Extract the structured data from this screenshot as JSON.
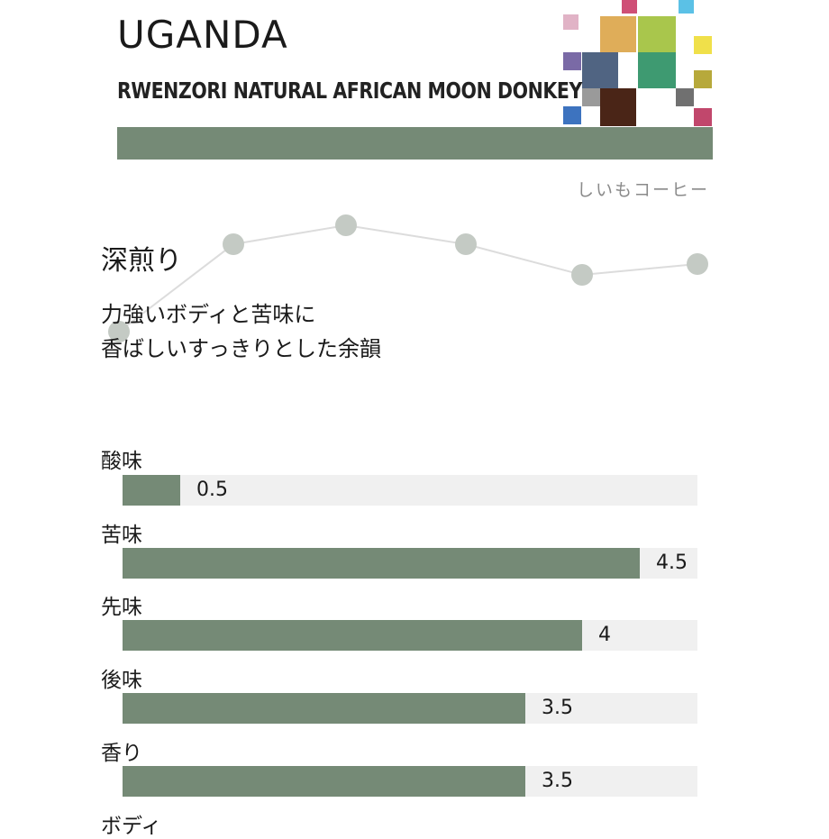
{
  "header": {
    "title": "UGANDA",
    "subtitle": "RWENZORI NATURAL AFRICAN MOON DONKEY",
    "brand": "しいもコーヒー",
    "accent_color": "#758a76"
  },
  "profile": {
    "roast": "深煎り",
    "description": [
      "力強いボディと苦味に",
      "香ばしいすっきりとした余韻"
    ],
    "point_color": "#c4cac4"
  },
  "chart_data": {
    "type": "bar",
    "orientation": "horizontal",
    "categories": [
      "酸味",
      "苦味",
      "先味",
      "後味",
      "香り",
      "ボディ"
    ],
    "values": [
      0.5,
      4.5,
      4,
      3.5,
      3.5,
      null
    ],
    "value_labels": [
      "0.5",
      "4.5",
      "4",
      "3.5",
      "3.5",
      ""
    ],
    "xlim": [
      0,
      5
    ],
    "bar_color": "#758a76",
    "track_color": "#f0f0f0",
    "grid": false
  }
}
